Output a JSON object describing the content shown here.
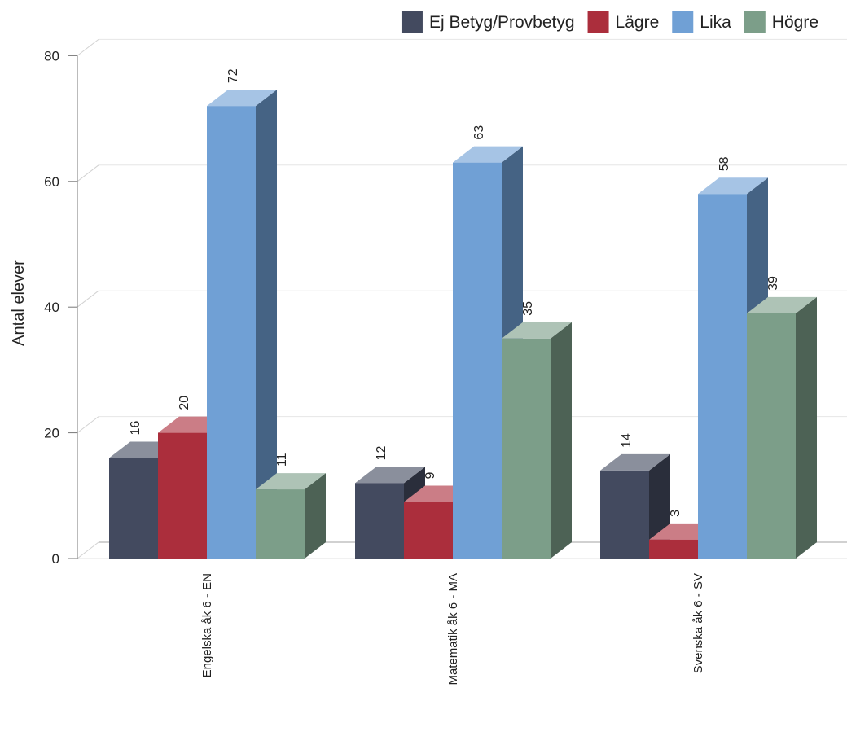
{
  "chart_data": {
    "type": "bar",
    "title": "",
    "xlabel": "",
    "ylabel": "Antal elever",
    "ylim": [
      0,
      80
    ],
    "yticks": [
      0,
      20,
      40,
      60,
      80
    ],
    "grid": true,
    "legend_position": "top-right",
    "categories": [
      "Engelska åk 6 - EN",
      "Matematik åk 6 - MA",
      "Svenska åk 6 - SV"
    ],
    "series": [
      {
        "name": "Ej Betyg/Provbetyg",
        "color": "#434a5f",
        "values": [
          16,
          12,
          14
        ]
      },
      {
        "name": "Lägre",
        "color": "#ab2e3c",
        "values": [
          20,
          9,
          3
        ]
      },
      {
        "name": "Lika",
        "color": "#70a0d5",
        "values": [
          72,
          63,
          58
        ]
      },
      {
        "name": "Högre",
        "color": "#7c9e89",
        "values": [
          11,
          35,
          39
        ]
      }
    ]
  }
}
